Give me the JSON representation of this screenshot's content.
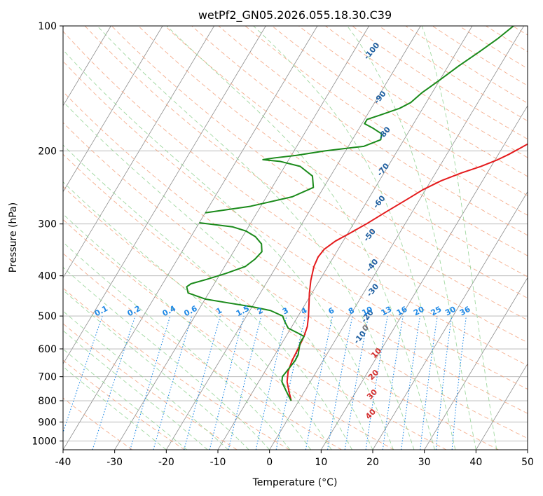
{
  "chart_data": {
    "type": "line",
    "title": "wetPf2_GN05.2026.055.18.30.C39",
    "xlabel": "Temperature (°C)",
    "ylabel": "Pressure (hPa)",
    "xlim": [
      -40,
      50
    ],
    "ylim": [
      1050,
      100
    ],
    "y_scale": "log",
    "x_ticks": [
      -40,
      -30,
      -20,
      -10,
      0,
      10,
      20,
      30,
      40,
      50
    ],
    "y_ticks": [
      100,
      200,
      300,
      400,
      500,
      600,
      700,
      800,
      900,
      1000
    ],
    "grid": true,
    "colors": {
      "temperature": "#e41a1c",
      "dewpoint": "#1a8a1a",
      "dry_adiabat": "#f4a582",
      "moist_adiabat": "#8fd18f",
      "mixing_ratio": "#1e88e5",
      "isotherm": "#8c8c8c",
      "gridline": "#b0b0b0"
    },
    "series": [
      {
        "color": "#e41a1c",
        "points": [
          [
            -1.5,
            800
          ],
          [
            -3,
            760
          ],
          [
            -4.5,
            720
          ],
          [
            -5.5,
            680
          ],
          [
            -6,
            640
          ],
          [
            -6.2,
            600
          ],
          [
            -6.5,
            560
          ],
          [
            -7,
            530
          ],
          [
            -8,
            500
          ],
          [
            -9.2,
            470
          ],
          [
            -10.5,
            440
          ],
          [
            -11.7,
            410
          ],
          [
            -12.7,
            380
          ],
          [
            -13,
            360
          ],
          [
            -12.7,
            345
          ],
          [
            -11.5,
            330
          ],
          [
            -9.5,
            315
          ],
          [
            -7.5,
            300
          ],
          [
            -5,
            280
          ],
          [
            -2.5,
            262
          ],
          [
            -0.5,
            248
          ],
          [
            2,
            236
          ],
          [
            5,
            226
          ],
          [
            8,
            218
          ],
          [
            10.5,
            210
          ],
          [
            12,
            204
          ],
          [
            13.5,
            197
          ],
          [
            15.5,
            188
          ],
          [
            18,
            178
          ],
          [
            21,
            168
          ],
          [
            24,
            158
          ],
          [
            27,
            147
          ],
          [
            29.5,
            136
          ],
          [
            31.5,
            125
          ],
          [
            33.5,
            115
          ],
          [
            35.5,
            107
          ],
          [
            37.5,
            100
          ]
        ]
      },
      {
        "color": "#1a8a1a",
        "points": [
          [
            -1.5,
            800
          ],
          [
            -2.5,
            780
          ],
          [
            -3.5,
            760
          ],
          [
            -4.5,
            740
          ],
          [
            -5.5,
            720
          ],
          [
            -6,
            700
          ],
          [
            -5.8,
            680
          ],
          [
            -5.6,
            660
          ],
          [
            -5.4,
            640
          ],
          [
            -5.5,
            620
          ],
          [
            -6,
            600
          ],
          [
            -6.5,
            580
          ],
          [
            -6.5,
            560
          ],
          [
            -8,
            550
          ],
          [
            -10.5,
            535
          ],
          [
            -12,
            515
          ],
          [
            -13,
            500
          ],
          [
            -16,
            485
          ],
          [
            -20,
            475
          ],
          [
            -25,
            465
          ],
          [
            -30,
            455
          ],
          [
            -34,
            440
          ],
          [
            -35,
            425
          ],
          [
            -34.5,
            418
          ],
          [
            -32,
            408
          ],
          [
            -29,
            395
          ],
          [
            -26,
            380
          ],
          [
            -25,
            365
          ],
          [
            -24.5,
            350
          ],
          [
            -25.5,
            335
          ],
          [
            -27.5,
            322
          ],
          [
            -30,
            312
          ],
          [
            -33,
            305
          ],
          [
            -38,
            300
          ],
          [
            -40,
            298
          ]
        ]
      },
      {
        "color": "#1a8a1a",
        "points": [
          [
            -40,
            282
          ],
          [
            -32,
            272
          ],
          [
            -25,
            258
          ],
          [
            -22,
            245
          ],
          [
            -23.5,
            230
          ],
          [
            -27,
            218
          ],
          [
            -31.5,
            212
          ],
          [
            -35,
            210
          ],
          [
            -33,
            208
          ],
          [
            -29,
            205
          ],
          [
            -24,
            200
          ],
          [
            -17,
            195
          ],
          [
            -14.5,
            188
          ],
          [
            -15,
            182
          ],
          [
            -17.5,
            176
          ],
          [
            -19.5,
            172
          ],
          [
            -19.5,
            168
          ],
          [
            -17.5,
            164
          ],
          [
            -14.5,
            158
          ],
          [
            -13,
            153
          ],
          [
            -12,
            145
          ],
          [
            -10,
            135
          ],
          [
            -8,
            125
          ],
          [
            -5.5,
            115
          ],
          [
            -3.5,
            107
          ],
          [
            -2,
            100
          ]
        ]
      }
    ],
    "dry_adiabat_labels": [
      "-100",
      "-90",
      "-80",
      "-70",
      "-60",
      "-50",
      "-40",
      "-30",
      "-20",
      "-10"
    ],
    "mixing_ratio_labels": [
      "0.1",
      "0.2",
      "0.4",
      "0.6",
      "1",
      "1.5",
      "2",
      "3",
      "4",
      "6",
      "8",
      "10",
      "13",
      "16",
      "20",
      "25",
      "30",
      "36"
    ],
    "moist_adiabat_labels": [
      "0",
      "10",
      "20",
      "30",
      "40"
    ]
  }
}
